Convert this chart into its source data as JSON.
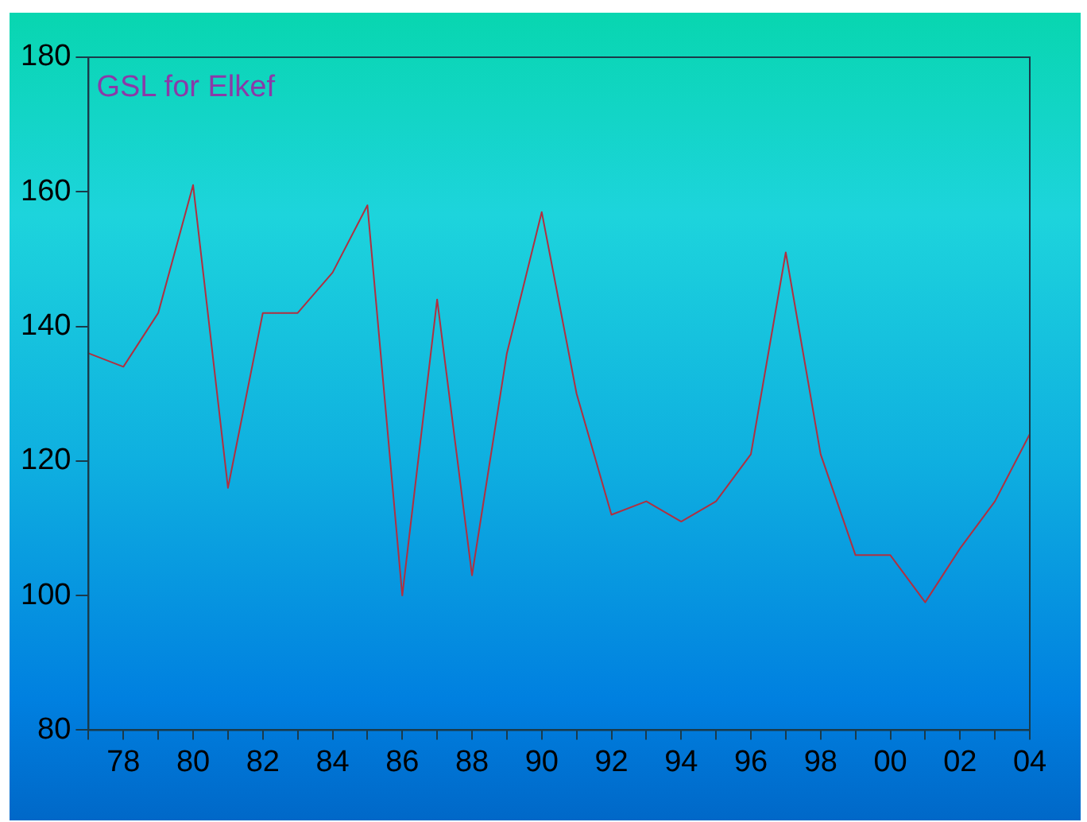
{
  "chart_data": {
    "type": "line",
    "title": "GSL for Elkef",
    "x": [
      1977,
      1978,
      1979,
      1980,
      1981,
      1982,
      1983,
      1984,
      1985,
      1986,
      1987,
      1988,
      1989,
      1990,
      1991,
      1992,
      1993,
      1994,
      1995,
      1996,
      1997,
      1998,
      1999,
      2000,
      2001,
      2002,
      2003,
      2004
    ],
    "series": [
      {
        "color": "#b03040",
        "values": [
          136,
          134,
          142,
          161,
          116,
          142,
          142,
          148,
          158,
          100,
          144,
          103,
          136,
          157,
          130,
          112,
          114,
          111,
          114,
          121,
          151,
          121,
          106,
          106,
          99,
          107,
          114,
          124
        ]
      }
    ],
    "xlim": [
      1977,
      2004
    ],
    "xticks": [
      {
        "value": 1977,
        "label": null
      },
      {
        "value": 1978,
        "label": "78"
      },
      {
        "value": 1979,
        "label": null
      },
      {
        "value": 1980,
        "label": "80"
      },
      {
        "value": 1981,
        "label": null
      },
      {
        "value": 1982,
        "label": "82"
      },
      {
        "value": 1983,
        "label": null
      },
      {
        "value": 1984,
        "label": "84"
      },
      {
        "value": 1985,
        "label": null
      },
      {
        "value": 1986,
        "label": "86"
      },
      {
        "value": 1987,
        "label": null
      },
      {
        "value": 1988,
        "label": "88"
      },
      {
        "value": 1989,
        "label": null
      },
      {
        "value": 1990,
        "label": "90"
      },
      {
        "value": 1991,
        "label": null
      },
      {
        "value": 1992,
        "label": "92"
      },
      {
        "value": 1993,
        "label": null
      },
      {
        "value": 1994,
        "label": "94"
      },
      {
        "value": 1995,
        "label": null
      },
      {
        "value": 1996,
        "label": "96"
      },
      {
        "value": 1997,
        "label": null
      },
      {
        "value": 1998,
        "label": "98"
      },
      {
        "value": 1999,
        "label": null
      },
      {
        "value": 2000,
        "label": "00"
      },
      {
        "value": 2001,
        "label": null
      },
      {
        "value": 2002,
        "label": "02"
      },
      {
        "value": 2003,
        "label": null
      },
      {
        "value": 2004,
        "label": "04"
      }
    ],
    "ylim": [
      80,
      180
    ],
    "yticks": [
      80,
      100,
      120,
      140,
      160,
      180
    ],
    "grid": false,
    "legend": false,
    "marker": "none",
    "line_style": "solid"
  }
}
